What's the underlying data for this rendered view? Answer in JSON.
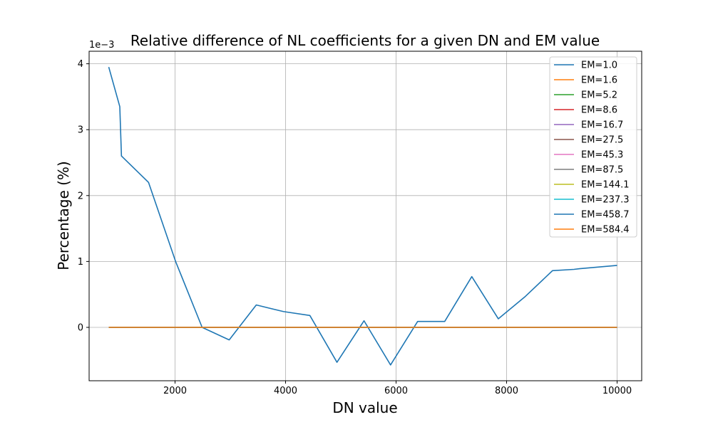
{
  "chart_data": {
    "type": "line",
    "title": "Relative difference of NL coefficients for a given DN and EM value",
    "xlabel": "DN value",
    "ylabel": "Percentage (%)",
    "y_offset_label": "1e−3",
    "y_scale_exponent": -3,
    "xlim": [
      445,
      10445
    ],
    "ylim": [
      -0.81,
      4.19
    ],
    "x_ticks": [
      2000,
      4000,
      6000,
      8000,
      10000
    ],
    "x_tick_labels": [
      "2000",
      "4000",
      "6000",
      "8000",
      "10000"
    ],
    "y_ticks": [
      0,
      1,
      2,
      3,
      4
    ],
    "y_tick_labels": [
      "0",
      "1",
      "2",
      "3",
      "4"
    ],
    "grid": true,
    "legend_position": "upper right",
    "series": [
      {
        "name": "EM=1.0",
        "color": "#1f77b4",
        "x": [
          800,
          1000,
          1030,
          1520,
          2010,
          2490,
          2980,
          3470,
          3960,
          4440,
          4930,
          5420,
          5900,
          6390,
          6880,
          7370,
          7850,
          8340,
          8830,
          9220,
          9320,
          10000
        ],
        "values": [
          3.95,
          3.35,
          2.6,
          2.2,
          1.0,
          0.0,
          -0.19,
          0.34,
          0.24,
          0.18,
          -0.53,
          0.1,
          -0.57,
          0.09,
          0.09,
          0.77,
          0.13,
          0.47,
          0.86,
          0.88,
          0.89,
          0.94
        ]
      },
      {
        "name": "EM=1.6",
        "color": "#ff7f0e",
        "x": [
          800,
          10000
        ],
        "values": [
          0,
          0
        ]
      },
      {
        "name": "EM=5.2",
        "color": "#2ca02c",
        "x": [
          800,
          10000
        ],
        "values": [
          0,
          0
        ]
      },
      {
        "name": "EM=8.6",
        "color": "#d62728",
        "x": [
          800,
          10000
        ],
        "values": [
          0,
          0
        ]
      },
      {
        "name": "EM=16.7",
        "color": "#9467bd",
        "x": [
          800,
          10000
        ],
        "values": [
          0,
          0
        ]
      },
      {
        "name": "EM=27.5",
        "color": "#8c564b",
        "x": [
          800,
          10000
        ],
        "values": [
          0,
          0
        ]
      },
      {
        "name": "EM=45.3",
        "color": "#e377c2",
        "x": [
          800,
          10000
        ],
        "values": [
          0,
          0
        ]
      },
      {
        "name": "EM=87.5",
        "color": "#7f7f7f",
        "x": [
          800,
          10000
        ],
        "values": [
          0,
          0
        ]
      },
      {
        "name": "EM=144.1",
        "color": "#bcbd22",
        "x": [
          800,
          10000
        ],
        "values": [
          0,
          0
        ]
      },
      {
        "name": "EM=237.3",
        "color": "#17becf",
        "x": [
          800,
          10000
        ],
        "values": [
          0,
          0
        ]
      },
      {
        "name": "EM=458.7",
        "color": "#1f77b4",
        "x": [
          800,
          10000
        ],
        "values": [
          0,
          0
        ]
      },
      {
        "name": "EM=584.4",
        "color": "#ff7f0e",
        "x": [
          800,
          10000
        ],
        "values": [
          0,
          0
        ]
      }
    ]
  }
}
